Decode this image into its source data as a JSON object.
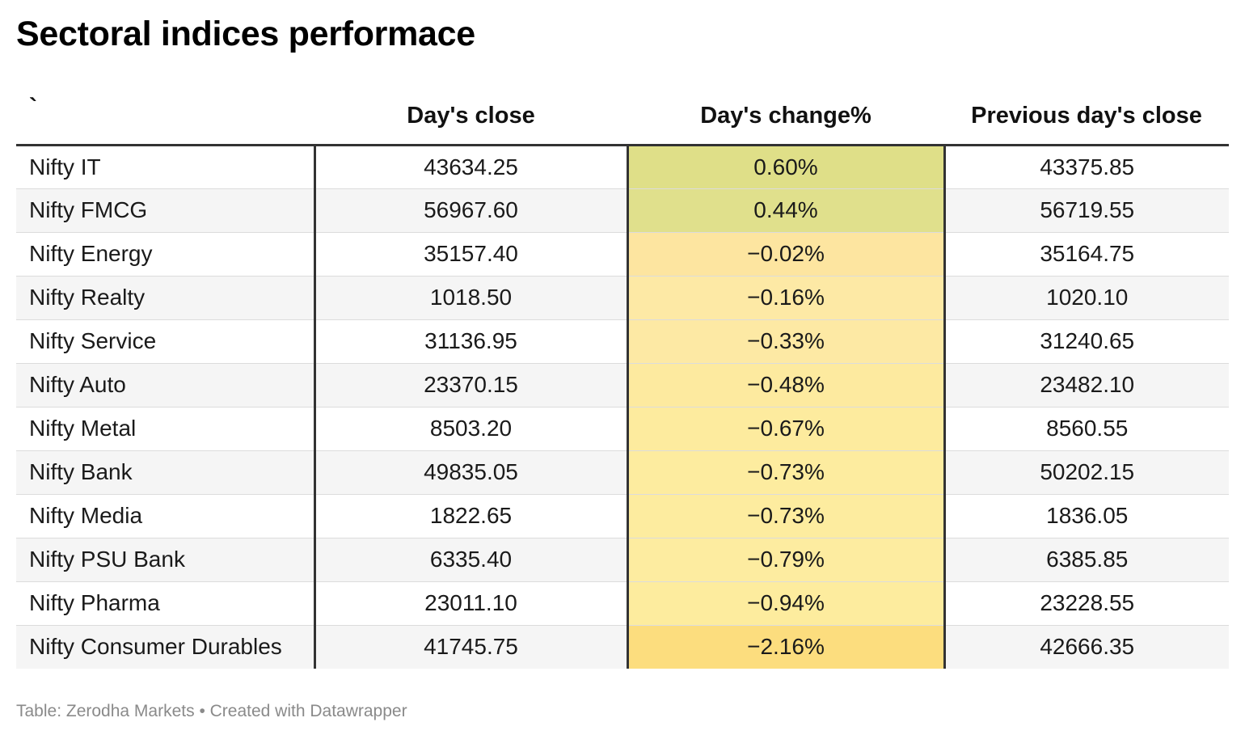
{
  "title": "Sectoral indices performace",
  "footer": {
    "source": "Table: Zerodha Markets",
    "separator": " • ",
    "credit": "Created with Datawrapper"
  },
  "chart_data": {
    "type": "table",
    "title": "Sectoral indices performace",
    "columns": [
      "`",
      "Day's close",
      "Day's change%",
      "Previous day's close"
    ],
    "rows": [
      {
        "name": "Nifty IT",
        "close": "43634.25",
        "change": "0.60%",
        "prev": "43375.85",
        "color": "#dfdf88"
      },
      {
        "name": "Nifty FMCG",
        "close": "56967.60",
        "change": "0.44%",
        "prev": "56719.55",
        "color": "#e0e08c"
      },
      {
        "name": "Nifty Energy",
        "close": "35157.40",
        "change": "−0.02%",
        "prev": "35164.75",
        "color": "#fde5a0"
      },
      {
        "name": "Nifty Realty",
        "close": "1018.50",
        "change": "−0.16%",
        "prev": "1020.10",
        "color": "#fde9a5"
      },
      {
        "name": "Nifty Service",
        "close": "31136.95",
        "change": "−0.33%",
        "prev": "31240.65",
        "color": "#fde9a4"
      },
      {
        "name": "Nifty Auto",
        "close": "23370.15",
        "change": "−0.48%",
        "prev": "23482.10",
        "color": "#fdea9f"
      },
      {
        "name": "Nifty Metal",
        "close": "8503.20",
        "change": "−0.67%",
        "prev": "8560.55",
        "color": "#fdeb9e"
      },
      {
        "name": "Nifty Bank",
        "close": "49835.05",
        "change": "−0.73%",
        "prev": "50202.15",
        "color": "#fdec9f"
      },
      {
        "name": "Nifty Media",
        "close": "1822.65",
        "change": "−0.73%",
        "prev": "1836.05",
        "color": "#fdec9f"
      },
      {
        "name": "Nifty PSU Bank",
        "close": "6335.40",
        "change": "−0.79%",
        "prev": "6385.85",
        "color": "#fdeca0"
      },
      {
        "name": "Nifty Pharma",
        "close": "23011.10",
        "change": "−0.94%",
        "prev": "23228.55",
        "color": "#fdec9e"
      },
      {
        "name": "Nifty Consumer Durables",
        "close": "41745.75",
        "change": "−2.16%",
        "prev": "42666.35",
        "color": "#fcdd7e"
      }
    ]
  }
}
